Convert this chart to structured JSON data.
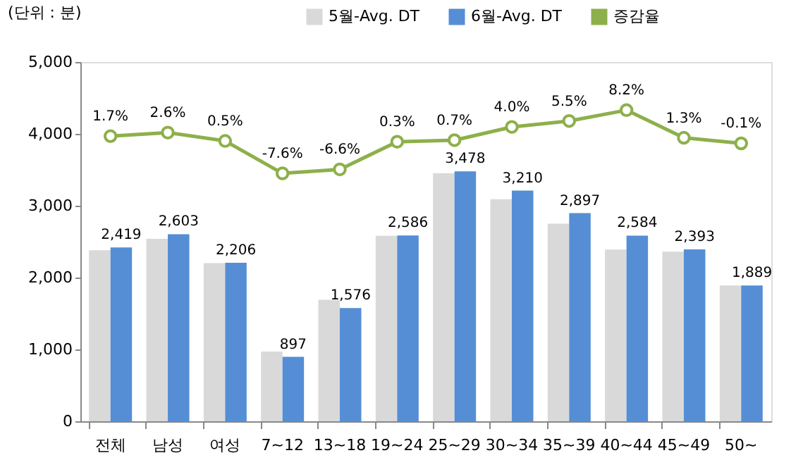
{
  "chart_data": {
    "type": "bar",
    "ylabel": "(단위 : 분)",
    "categories": [
      "전체",
      "남성",
      "여성",
      "7~12",
      "13~18",
      "19~24",
      "25~29",
      "30~34",
      "35~39",
      "40~44",
      "45~49",
      "50~"
    ],
    "series": [
      {
        "name": "5월-Avg. DT",
        "color": "#d9d9d9",
        "values": [
          2380,
          2540,
          2200,
          970,
          1690,
          2580,
          3450,
          3090,
          2750,
          2390,
          2360,
          1890
        ]
      },
      {
        "name": "6월-Avg. DT",
        "color": "#558ed5",
        "values": [
          2419,
          2603,
          2206,
          897,
          1576,
          2586,
          3478,
          3210,
          2897,
          2584,
          2393,
          1889
        ],
        "value_labels": [
          "2,419",
          "2,603",
          "2,206",
          "897",
          "1,576",
          "2,586",
          "3,478",
          "3,210",
          "2,897",
          "2,584",
          "2,393",
          "1,889"
        ]
      },
      {
        "name": "증감율",
        "type": "line",
        "axis": "y2",
        "color": "#8db04a",
        "marker": "circle",
        "values": [
          1.7,
          2.6,
          0.5,
          -7.6,
          -6.6,
          0.3,
          0.7,
          4.0,
          5.5,
          8.2,
          1.3,
          -0.1
        ],
        "value_labels": [
          "1.7%",
          "2.6%",
          "0.5%",
          "-7.6%",
          "-6.6%",
          "0.3%",
          "0.7%",
          "4.0%",
          "5.5%",
          "8.2%",
          "1.3%",
          "-0.1%"
        ]
      }
    ],
    "ylim": [
      0,
      5000
    ],
    "yticks": [
      {
        "value": 0,
        "label": "0"
      },
      {
        "value": 1000,
        "label": "1,000"
      },
      {
        "value": 2000,
        "label": "2,000"
      },
      {
        "value": 3000,
        "label": "3,000"
      },
      {
        "value": 4000,
        "label": "4,000"
      },
      {
        "value": 5000,
        "label": "5,000"
      }
    ],
    "grid": false,
    "legend": "top right"
  }
}
